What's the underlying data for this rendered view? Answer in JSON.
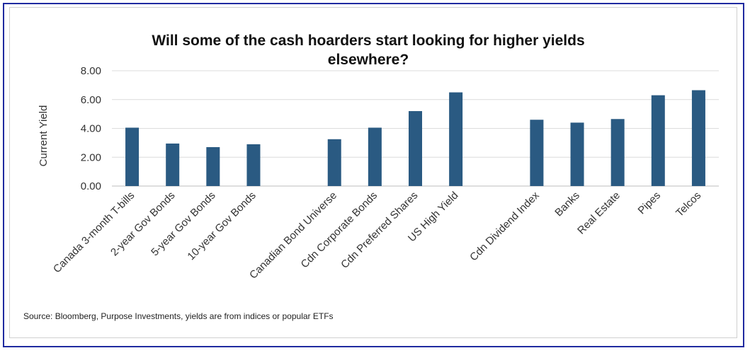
{
  "chart_data": {
    "type": "bar",
    "title_line1": "Will some of the cash hoarders start looking for higher yields",
    "title_line2": "elsewhere?",
    "ylabel": "Current Yield",
    "ylim": [
      0,
      8
    ],
    "yticks": [
      "0.00",
      "2.00",
      "4.00",
      "6.00",
      "8.00"
    ],
    "grid": true,
    "bar_color": "#2a5a82",
    "groups": [
      {
        "categories": [
          "Canada 3-month T-bills",
          "2-year Gov Bonds",
          "5-year Gov Bonds",
          "10-year Gov Bonds"
        ],
        "values": [
          4.05,
          2.95,
          2.7,
          2.9
        ]
      },
      {
        "categories": [
          "Canadian Bond Universe",
          "Cdn Corporate Bonds",
          "Cdn Preferred Shares",
          "US High Yield"
        ],
        "values": [
          3.25,
          4.05,
          5.2,
          6.5
        ]
      },
      {
        "categories": [
          "Cdn Dividend Index",
          "Banks",
          "Real Estate",
          "Pipes",
          "Telcos"
        ],
        "values": [
          4.6,
          4.4,
          4.65,
          6.3,
          6.65
        ]
      }
    ]
  },
  "source": "Source: Bloomberg, Purpose Investments, yields are from indices or popular ETFs"
}
